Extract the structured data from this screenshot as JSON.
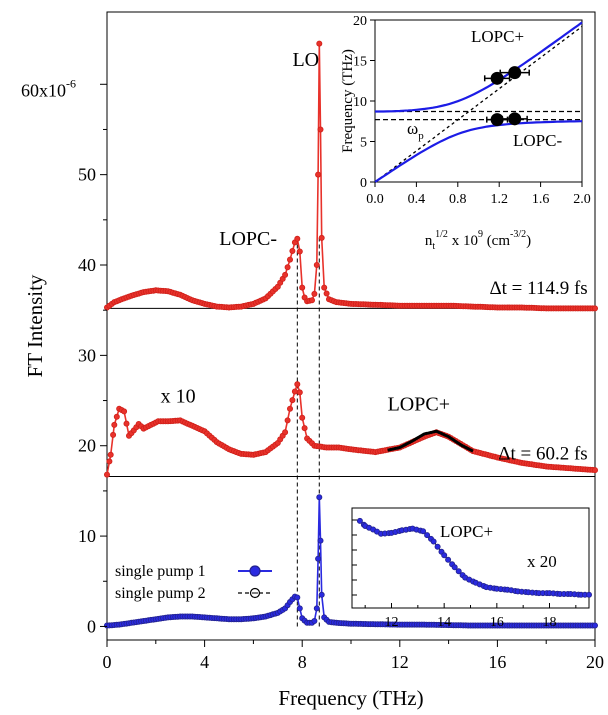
{
  "colors": {
    "red": "#e8322b",
    "red_marker": "#d0201a",
    "blue": "#2a2ae0",
    "blue_marker": "#23238f",
    "black": "#000000",
    "inset_blue": "#1c1ce6"
  },
  "chart_data": [
    {
      "type": "line",
      "xlabel": "Frequency (THz)",
      "ylabel": "FT Intensity",
      "xlim": [
        0,
        20
      ],
      "ylim": [
        -1.5,
        68
      ],
      "x_ticks": [
        0,
        4,
        8,
        12,
        16,
        20
      ],
      "y_ticks": [
        {
          "value": 0,
          "label": "0"
        },
        {
          "value": 10,
          "label": "10"
        },
        {
          "value": 20,
          "label": "20"
        },
        {
          "value": 30,
          "label": "30"
        },
        {
          "value": 40,
          "label": "40"
        },
        {
          "value": 50,
          "label": "50"
        },
        {
          "value": 60,
          "label": "60x10",
          "sup": "-6"
        }
      ],
      "baselines": [
        16.6,
        35.2
      ],
      "guide_lines_x": [
        7.8,
        8.7
      ],
      "annotations": [
        {
          "text": "LO",
          "x": 7.6,
          "y": 62
        },
        {
          "text": "LOPC-",
          "x": 4.6,
          "y": 42.2
        },
        {
          "text": "x 10",
          "x": 2.2,
          "y": 24.8
        },
        {
          "text": "LOPC+",
          "x": 11.5,
          "y": 23.9
        }
      ],
      "delays": [
        {
          "text": "Δt = 114.9 fs",
          "x": 19.7,
          "y": 36.8
        },
        {
          "text": "Δt = 60.2 fs",
          "x": 19.7,
          "y": 18.5
        }
      ],
      "legend_position": "bottom-left",
      "series": [
        {
          "name": "Δt = 114.9 fs",
          "x": [
            0,
            0.3,
            0.5,
            1,
            1.5,
            2,
            2.5,
            3,
            3.5,
            4,
            4.5,
            5,
            5.5,
            6,
            6.5,
            7,
            7.3,
            7.5,
            7.7,
            7.8,
            7.9,
            8.0,
            8.1,
            8.2,
            8.4,
            8.5,
            8.6,
            8.65,
            8.7,
            8.75,
            8.8,
            8.9,
            9.1,
            9.4,
            10,
            11,
            12,
            13,
            14,
            15,
            16,
            17,
            18,
            19,
            20
          ],
          "y": [
            35.3,
            35.9,
            36.1,
            36.6,
            37.0,
            37.2,
            37.1,
            36.7,
            36.1,
            35.7,
            35.4,
            35.3,
            35.4,
            35.7,
            36.3,
            37.6,
            38.9,
            40.6,
            42.5,
            42.9,
            41.5,
            37.5,
            36.4,
            36.0,
            36.1,
            36.8,
            40.0,
            50.0,
            64.5,
            55.0,
            43.0,
            37.5,
            36.2,
            35.9,
            35.7,
            35.6,
            35.5,
            35.5,
            35.5,
            35.4,
            35.3,
            35.3,
            35.2,
            35.2,
            35.2
          ]
        },
        {
          "name": "Δt = 60.2 fs",
          "x": [
            0,
            0.15,
            0.3,
            0.5,
            0.7,
            0.9,
            1.1,
            1.3,
            1.5,
            1.8,
            2.1,
            2.5,
            3,
            3.5,
            4,
            4.5,
            5,
            5.5,
            6,
            6.5,
            7,
            7.3,
            7.5,
            7.7,
            7.8,
            7.9,
            8.0,
            8.2,
            8.5,
            9,
            9.5,
            10,
            11,
            12,
            13,
            13.5,
            14,
            15,
            16,
            17,
            18,
            19,
            20
          ],
          "y": [
            16.8,
            19.0,
            22.3,
            24.1,
            23.8,
            21.1,
            21.7,
            22.4,
            21.9,
            22.3,
            22.7,
            22.7,
            22.8,
            22.2,
            21.6,
            20.4,
            19.6,
            19.1,
            19.0,
            19.3,
            20.3,
            21.5,
            24.1,
            26.0,
            26.8,
            25.9,
            23.1,
            20.8,
            20.0,
            19.8,
            19.8,
            19.6,
            19.3,
            19.8,
            21.0,
            21.5,
            21.0,
            19.4,
            18.7,
            18.1,
            17.7,
            17.5,
            17.3
          ]
        },
        {
          "name": "single pump 1",
          "x": [
            0,
            0.5,
            1,
            1.5,
            2,
            2.5,
            3,
            3.5,
            4,
            4.5,
            5,
            5.5,
            6,
            6.5,
            7,
            7.3,
            7.5,
            7.7,
            7.8,
            7.9,
            8.0,
            8.2,
            8.4,
            8.5,
            8.6,
            8.65,
            8.7,
            8.75,
            8.8,
            8.9,
            9.1,
            9.4,
            10,
            11,
            12,
            13,
            14,
            15,
            16,
            17,
            18,
            19,
            20
          ],
          "y": [
            0.1,
            0.2,
            0.4,
            0.6,
            0.8,
            1.0,
            1.1,
            1.1,
            1.0,
            0.9,
            0.8,
            0.8,
            0.9,
            1.1,
            1.5,
            2.0,
            2.7,
            3.3,
            3.2,
            2.0,
            0.9,
            0.4,
            0.4,
            0.6,
            2.0,
            7.5,
            14.3,
            9.5,
            3.5,
            1.0,
            0.5,
            0.4,
            0.3,
            0.25,
            0.2,
            0.2,
            0.15,
            0.1,
            0.1,
            0.1,
            0.1,
            0.1,
            0.1
          ]
        }
      ],
      "fit_segments": [
        {
          "x": [
            11.5,
            12,
            12.5,
            13,
            13.5,
            14,
            14.5,
            15
          ],
          "y": [
            19.5,
            19.8,
            20.5,
            21.3,
            21.6,
            21.0,
            20.1,
            19.4
          ]
        }
      ],
      "legend": [
        {
          "label": "single pump 1",
          "style": "filled-circle-line"
        },
        {
          "label": "single pump 2",
          "style": "dashed-open-circle"
        }
      ]
    },
    {
      "type": "scatter",
      "panel": "inset-top-right",
      "xlabel": "n",
      "xlabel_sub": "t",
      "xlabel_sup": "1/2",
      "xlabel_mid": " x 10",
      "xlabel_sup2": "9",
      "xlabel_end": " (cm",
      "xlabel_sup3": "-3/2",
      "xlabel_close": ")",
      "ylabel": "Frequency (THz)",
      "xlim": [
        0,
        2.0
      ],
      "ylim": [
        0,
        20
      ],
      "x_ticks": [
        "0.0",
        "0.4",
        "0.8",
        "1.2",
        "1.6",
        "2.0"
      ],
      "y_ticks": [
        "0",
        "5",
        "10",
        "15",
        "20"
      ],
      "upper_branch_label": "LOPC+",
      "lower_branch_label": "LOPC-",
      "plasma_label": "ω",
      "plasma_label_sub": "p",
      "dashed_levels": [
        7.7,
        8.7
      ],
      "points": [
        {
          "x": 1.18,
          "y": 12.8,
          "xerr": 0.12
        },
        {
          "x": 1.35,
          "y": 13.5,
          "xerr": 0.14
        },
        {
          "x": 1.18,
          "y": 7.7,
          "xerr": 0.1
        },
        {
          "x": 1.35,
          "y": 7.8,
          "xerr": 0.12
        }
      ]
    },
    {
      "type": "line",
      "panel": "inset-bottom-right",
      "label": "LOPC+",
      "scale_label": "x 20",
      "xlim": [
        10.5,
        19.5
      ],
      "x_ticks": [
        12,
        14,
        16,
        18
      ],
      "x": [
        10.8,
        11,
        11.3,
        11.6,
        12,
        12.4,
        12.8,
        13.2,
        13.6,
        14,
        14.4,
        14.8,
        15.2,
        15.6,
        16,
        16.4,
        16.8,
        17.2,
        17.6,
        18,
        18.4,
        18.8,
        19.2,
        19.5
      ],
      "y": [
        0.92,
        0.86,
        0.82,
        0.77,
        0.78,
        0.81,
        0.83,
        0.8,
        0.68,
        0.52,
        0.38,
        0.26,
        0.2,
        0.15,
        0.13,
        0.12,
        0.1,
        0.09,
        0.08,
        0.08,
        0.07,
        0.07,
        0.06,
        0.06
      ]
    }
  ]
}
